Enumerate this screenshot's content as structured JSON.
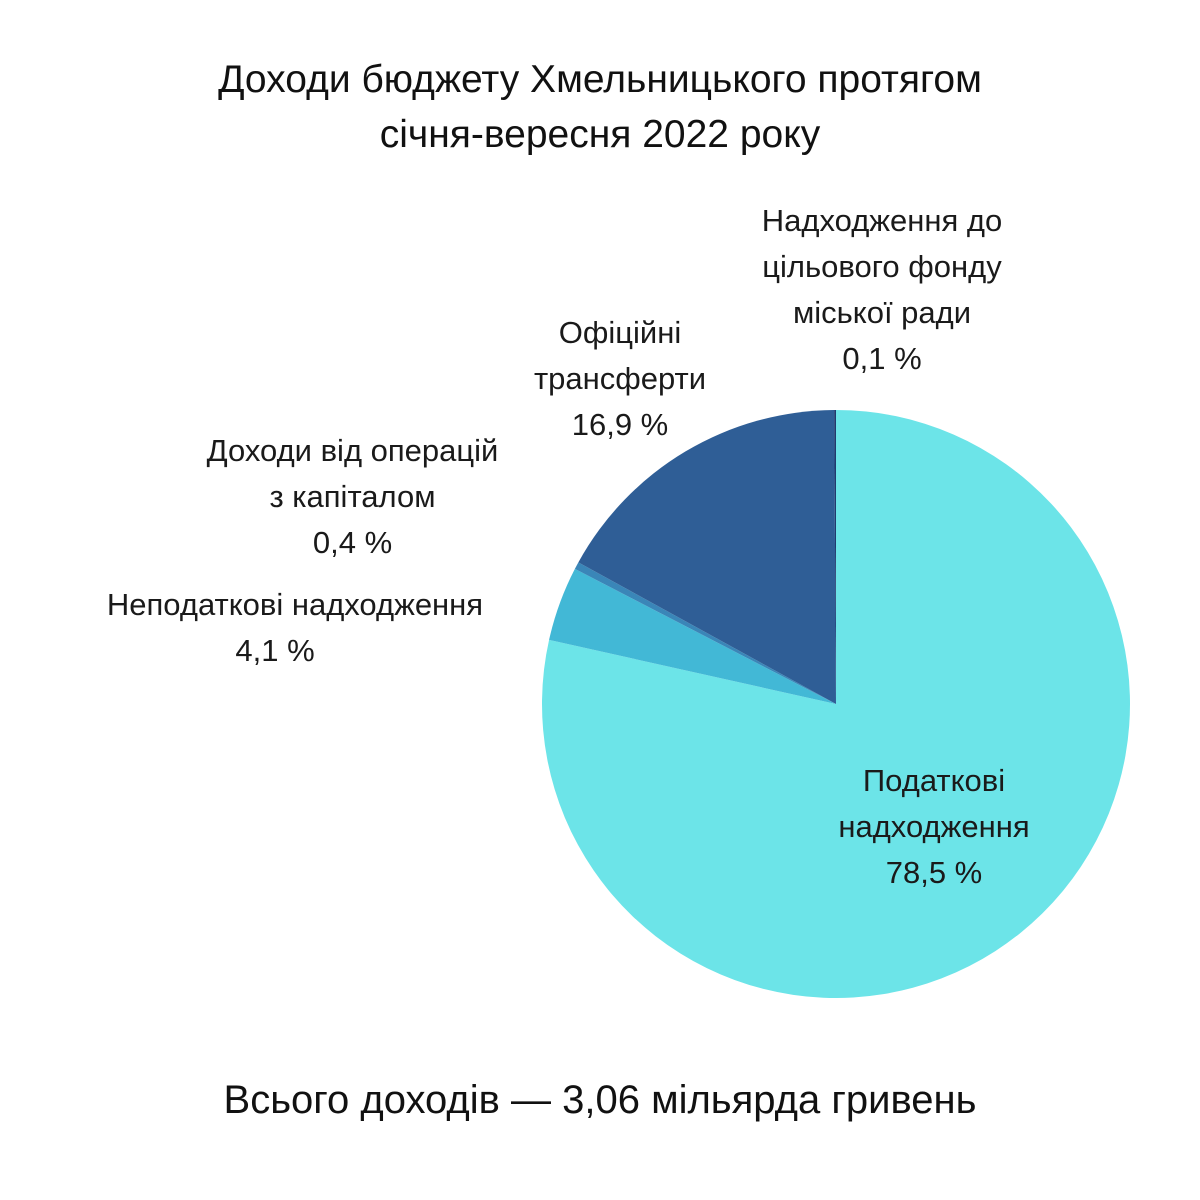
{
  "chart_data": {
    "type": "pie",
    "title_lines": [
      "Доходи бюджету Хмельницького протягом",
      "січня-вересня 2022 року"
    ],
    "slices": [
      {
        "name_lines": [
          "Податкові",
          "надходження"
        ],
        "value": 78.5,
        "label": "78,5 %",
        "color": "#6ce4e8"
      },
      {
        "name_lines": [
          "Неподаткові надходження"
        ],
        "value": 4.1,
        "label": "4,1 %",
        "color": "#42b8d6"
      },
      {
        "name_lines": [
          "Доходи від операцій",
          "з капіталом"
        ],
        "value": 0.4,
        "label": "0,4 %",
        "color": "#3a86b8"
      },
      {
        "name_lines": [
          "Офіційні",
          "трансферти"
        ],
        "value": 16.9,
        "label": "16,9 %",
        "color": "#2f5e96"
      },
      {
        "name_lines": [
          "Надходження до",
          "цільового фонду",
          "міської ради"
        ],
        "value": 0.1,
        "label": "0,1 %",
        "color": "#1f3a6e"
      }
    ],
    "start": "12 o'clock",
    "direction": "clockwise",
    "legend": "none",
    "footer": "Всього доходів — 3,06 мільярда гривень"
  }
}
